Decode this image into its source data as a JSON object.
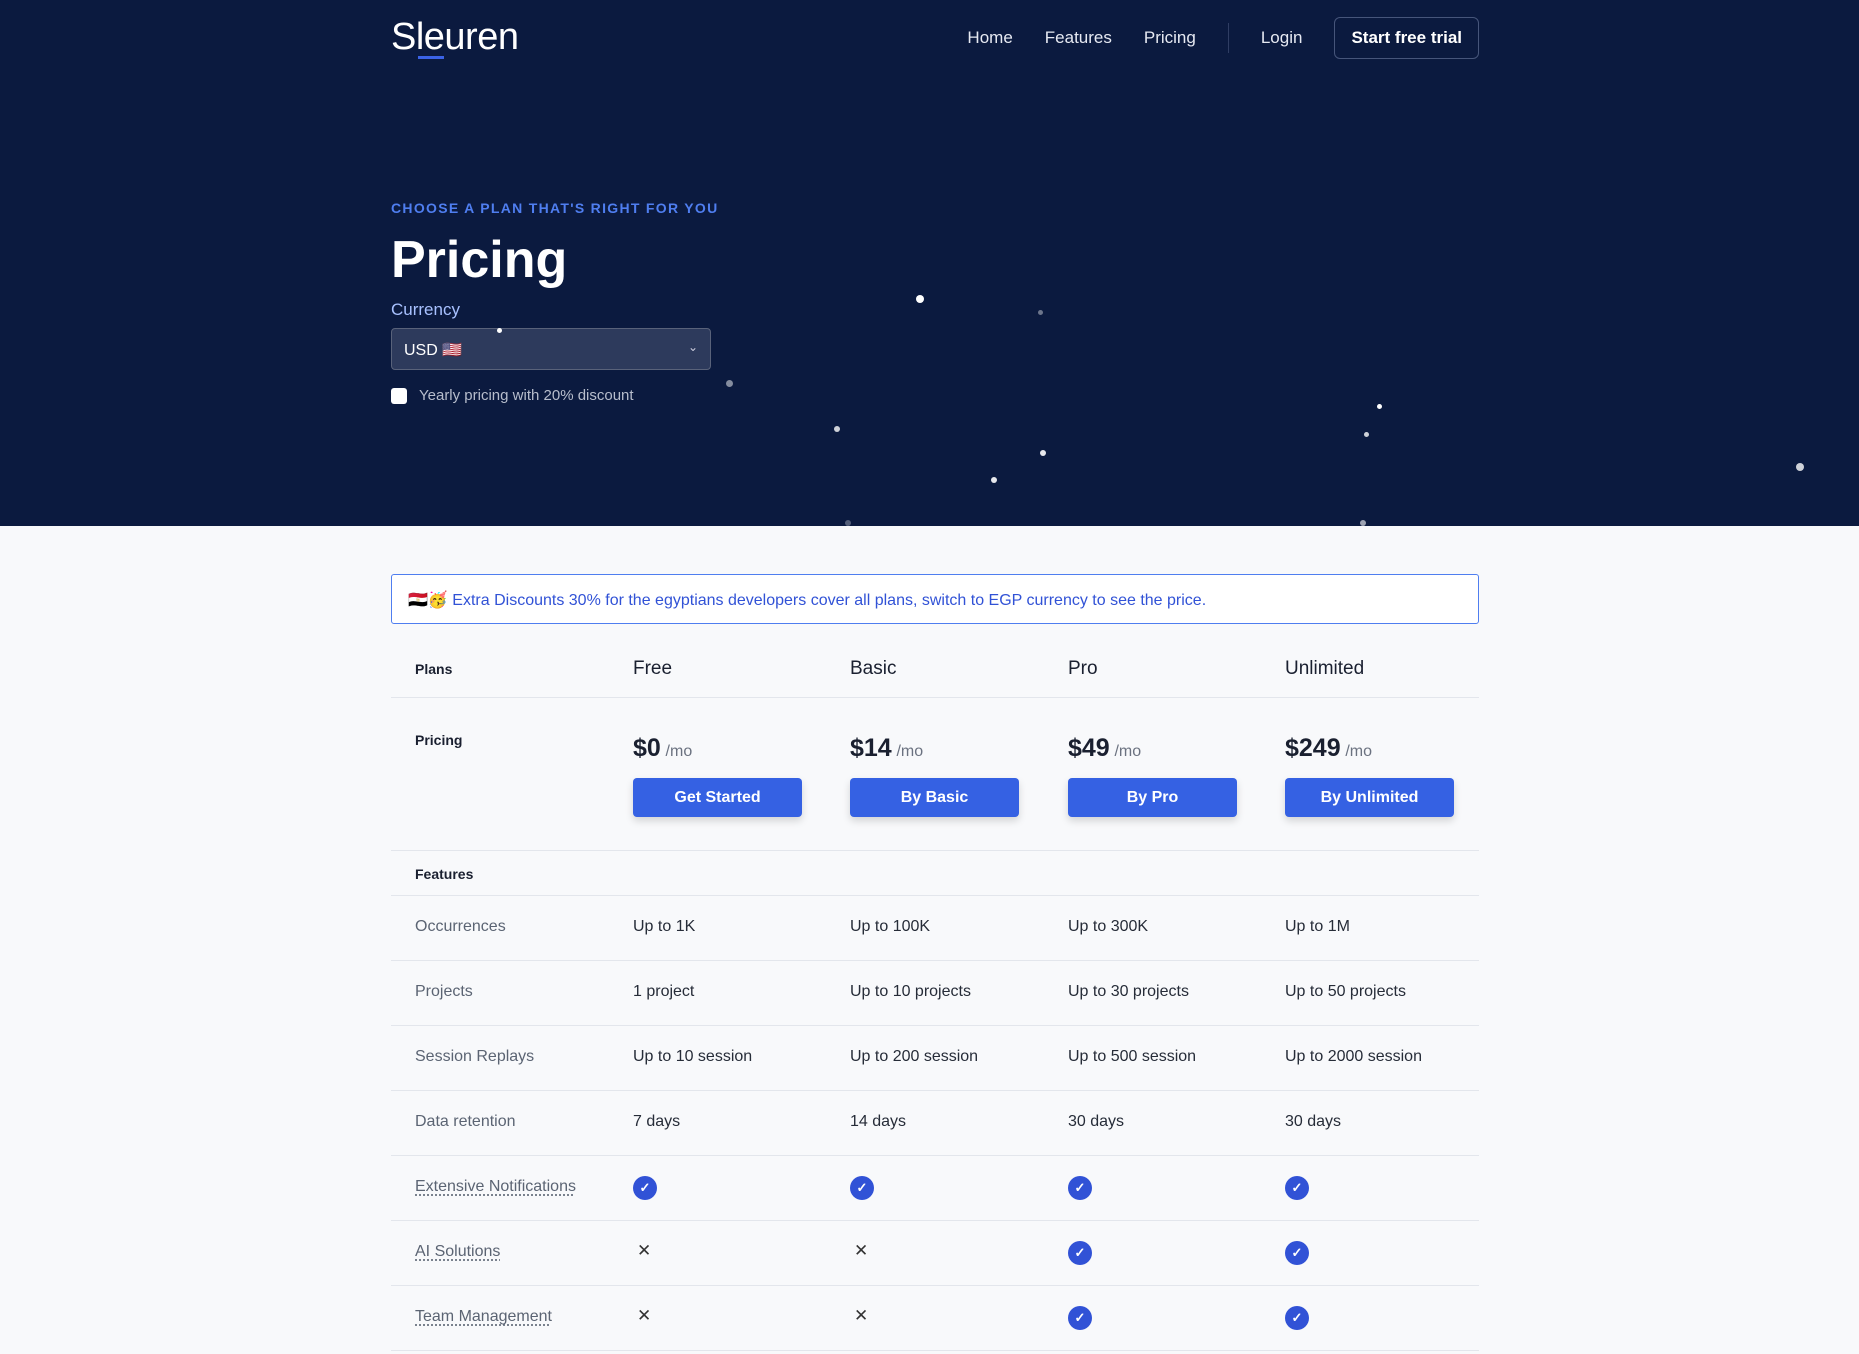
{
  "nav": {
    "logo": "Sleuren",
    "links": [
      "Home",
      "Features",
      "Pricing"
    ],
    "login": "Login",
    "cta": "Start free trial"
  },
  "hero": {
    "eyebrow": "CHOOSE A PLAN THAT'S RIGHT FOR YOU",
    "title": "Pricing",
    "currency_label": "Currency",
    "currency_value": "USD 🇺🇸",
    "yearly_label": "Yearly pricing with 20% discount",
    "yearly_checked": false
  },
  "banner": "🇪🇬🥳 Extra Discounts 30% for the egyptians developers cover all plans, switch to EGP currency to see the price.",
  "table": {
    "plans_label": "Plans",
    "pricing_label": "Pricing",
    "features_label": "Features",
    "per": "/mo",
    "plans": [
      {
        "name": "Free",
        "price": "$0",
        "button": "Get Started"
      },
      {
        "name": "Basic",
        "price": "$14",
        "button": "By Basic"
      },
      {
        "name": "Pro",
        "price": "$49",
        "button": "By Pro"
      },
      {
        "name": "Unlimited",
        "price": "$249",
        "button": "By Unlimited"
      }
    ],
    "features": [
      {
        "label": "Occurrences",
        "values": [
          "Up to 1K",
          "Up to 100K",
          "Up to 300K",
          "Up to 1M"
        ]
      },
      {
        "label": "Projects",
        "values": [
          "1 project",
          "Up to 10 projects",
          "Up to 30 projects",
          "Up to 50 projects"
        ]
      },
      {
        "label": "Session Replays",
        "values": [
          "Up to 10 session",
          "Up to 200 session",
          "Up to 500 session",
          "Up to 2000 session"
        ]
      },
      {
        "label": "Data retention",
        "values": [
          "7 days",
          "14 days",
          "30 days",
          "30 days"
        ]
      },
      {
        "label": "Extensive Notifications",
        "tooltip": true,
        "values": [
          true,
          true,
          true,
          true
        ]
      },
      {
        "label": "AI Solutions",
        "tooltip": true,
        "values": [
          false,
          false,
          true,
          true
        ]
      },
      {
        "label": "Team Management",
        "tooltip": true,
        "values": [
          false,
          false,
          true,
          true
        ]
      }
    ]
  },
  "colors": {
    "hero_bg": "#0b1a3f",
    "accent": "#3561e3"
  }
}
